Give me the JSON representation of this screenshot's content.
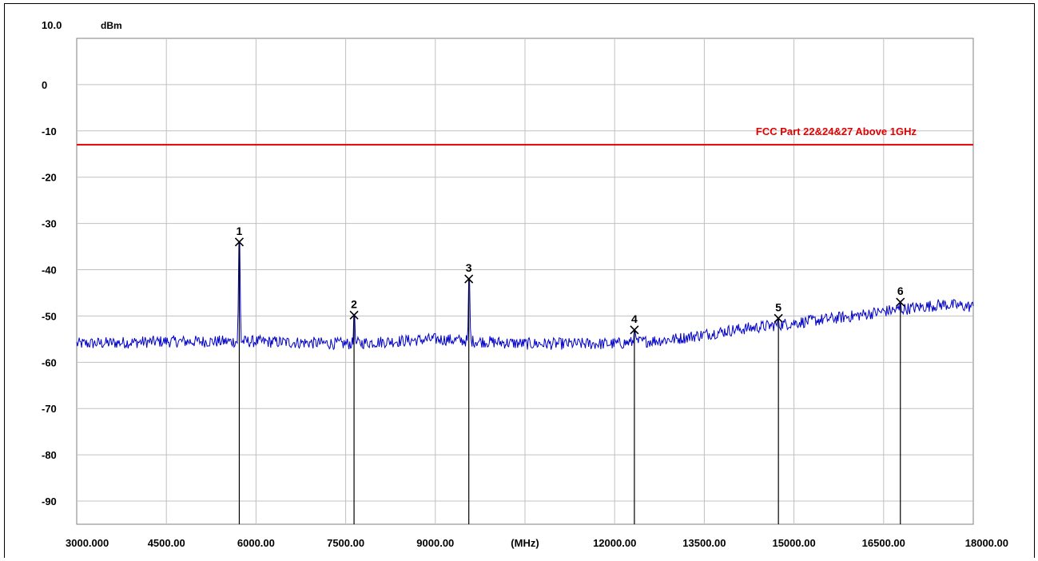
{
  "chart_data": {
    "type": "line",
    "y_unit": "dBm",
    "x_unit": "(MHz)",
    "ylim": [
      -95,
      10
    ],
    "xlim": [
      3000,
      18000
    ],
    "y_ticks": [
      {
        "value": 10,
        "label": "10.0"
      },
      {
        "value": 0,
        "label": "0"
      },
      {
        "value": -10,
        "label": "-10"
      },
      {
        "value": -20,
        "label": "-20"
      },
      {
        "value": -30,
        "label": "-30"
      },
      {
        "value": -40,
        "label": "-40"
      },
      {
        "value": -50,
        "label": "-50"
      },
      {
        "value": -60,
        "label": "-60"
      },
      {
        "value": -70,
        "label": "-70"
      },
      {
        "value": -80,
        "label": "-80"
      },
      {
        "value": -90,
        "label": "-90"
      }
    ],
    "x_ticks": [
      {
        "value": 3000,
        "label": "3000.000"
      },
      {
        "value": 4500,
        "label": "4500.00"
      },
      {
        "value": 6000,
        "label": "6000.00"
      },
      {
        "value": 7500,
        "label": "7500.00"
      },
      {
        "value": 9000,
        "label": "9000.00"
      },
      {
        "value": 10500,
        "label": "(MHz)"
      },
      {
        "value": 12000,
        "label": "12000.00"
      },
      {
        "value": 13500,
        "label": "13500.00"
      },
      {
        "value": 15000,
        "label": "15000.00"
      },
      {
        "value": 16500,
        "label": "16500.00"
      },
      {
        "value": 18000,
        "label": "18000.00"
      }
    ],
    "grid": true,
    "limit_line": {
      "value": -13,
      "label": "FCC Part 22&24&27 Above 1GHz",
      "color": "#e00000"
    },
    "trace_color": "#0000c8",
    "noise_floor": [
      [
        3000,
        -56
      ],
      [
        4500,
        -55.5
      ],
      [
        6000,
        -55.5
      ],
      [
        7500,
        -56
      ],
      [
        9000,
        -55
      ],
      [
        10500,
        -56
      ],
      [
        12000,
        -56
      ],
      [
        13000,
        -55
      ],
      [
        14000,
        -53
      ],
      [
        15000,
        -51.5
      ],
      [
        16000,
        -50
      ],
      [
        16500,
        -49
      ],
      [
        17500,
        -47.5
      ],
      [
        18000,
        -48
      ]
    ],
    "markers": [
      {
        "label": "1",
        "freq": 5720,
        "level": -34
      },
      {
        "label": "2",
        "freq": 7640,
        "level": -49.8
      },
      {
        "label": "3",
        "freq": 9560,
        "level": -42
      },
      {
        "label": "4",
        "freq": 12330,
        "level": -53
      },
      {
        "label": "5",
        "freq": 14740,
        "level": -50.5
      },
      {
        "label": "6",
        "freq": 16780,
        "level": -47
      }
    ]
  }
}
